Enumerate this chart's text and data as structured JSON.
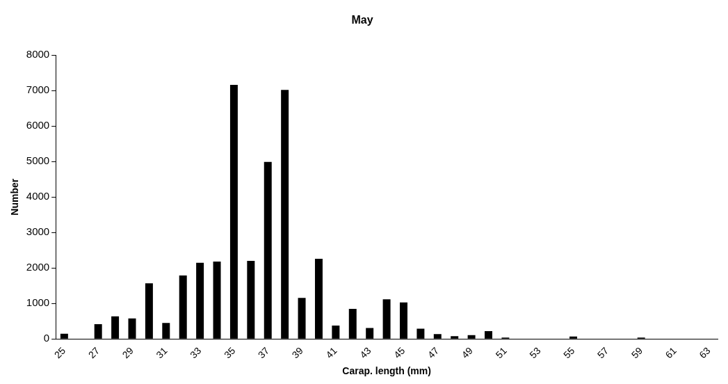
{
  "chart_data": {
    "type": "bar",
    "title": "May",
    "xlabel": "Carap. length (mm)",
    "ylabel": "Number",
    "categories": [
      "25",
      null,
      "27",
      null,
      "29",
      null,
      "31",
      null,
      "33",
      null,
      "35",
      null,
      "37",
      null,
      "39",
      null,
      "41",
      null,
      "43",
      null,
      "45",
      null,
      "47",
      null,
      "49",
      null,
      "51",
      null,
      "53",
      null,
      "55",
      null,
      "57",
      null,
      "59",
      null,
      "61",
      null,
      "63"
    ],
    "values": [
      150,
      0,
      420,
      640,
      580,
      1570,
      450,
      1790,
      2150,
      2180,
      7160,
      2200,
      4990,
      7020,
      1160,
      2260,
      380,
      850,
      310,
      1120,
      1030,
      290,
      140,
      80,
      110,
      220,
      40,
      0,
      0,
      0,
      70,
      0,
      0,
      0,
      40,
      0,
      0,
      0,
      0
    ],
    "color": "#000000",
    "ylim": [
      0,
      8000
    ],
    "yticks": [
      0,
      1000,
      2000,
      3000,
      4000,
      5000,
      6000,
      7000,
      8000
    ],
    "grid": false,
    "legend": false
  }
}
